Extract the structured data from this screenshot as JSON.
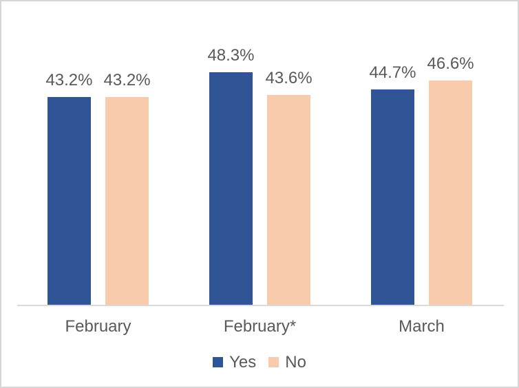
{
  "chart_data": {
    "type": "bar",
    "categories": [
      "February",
      "February*",
      "March"
    ],
    "series": [
      {
        "name": "Yes",
        "color": "#2F5597",
        "values": [
          43.2,
          48.3,
          44.7
        ],
        "labels": [
          "43.2%",
          "48.3%",
          "44.7%"
        ]
      },
      {
        "name": "No",
        "color": "#F8CBAD",
        "values": [
          43.2,
          43.6,
          46.6
        ],
        "labels": [
          "43.2%",
          "43.6%",
          "46.6%"
        ]
      }
    ],
    "title": "",
    "xlabel": "",
    "ylabel": "",
    "ylim": [
      0,
      63
    ],
    "grid": false,
    "y_axis_visible": false,
    "data_label_format": "0.0%",
    "legend_position": "bottom"
  },
  "colors": {
    "background": "#FFFFFF",
    "frame_border": "#D6D6D6",
    "axis_line": "#D9D9D9",
    "text": "#595959"
  }
}
